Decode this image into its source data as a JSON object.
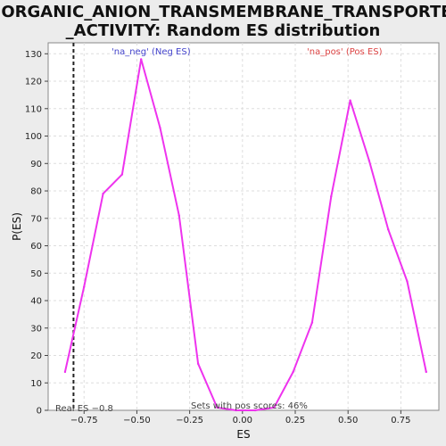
{
  "chart_data": {
    "type": "line",
    "title_lines": [
      "INORGANIC_ANION_TRANSMEMBRANE_TRANSPORTER",
      "_ACTIVITY: Random ES distribution"
    ],
    "xlabel": "ES",
    "ylabel": "P(ES)",
    "xlim": [
      -0.92,
      0.93
    ],
    "ylim": [
      0,
      134
    ],
    "x_ticks": [
      -0.75,
      -0.5,
      -0.25,
      0.0,
      0.25,
      0.5,
      0.75
    ],
    "x_tick_labels": [
      "−0.75",
      "−0.50",
      "−0.25",
      "0.00",
      "0.25",
      "0.50",
      "0.75"
    ],
    "y_ticks": [
      0,
      10,
      20,
      30,
      40,
      50,
      60,
      70,
      80,
      90,
      100,
      110,
      120,
      130
    ],
    "grid": true,
    "series": [
      {
        "color": "#ee33ee",
        "x": [
          -0.84,
          -0.75,
          -0.66,
          -0.57,
          -0.48,
          -0.39,
          -0.3,
          -0.21,
          -0.12,
          -0.03,
          0.06,
          0.15,
          0.24,
          0.33,
          0.42,
          0.51,
          0.6,
          0.69,
          0.78,
          0.87
        ],
        "y": [
          14,
          45,
          79,
          86,
          128,
          103,
          71,
          17,
          1,
          0,
          0,
          1,
          14,
          32,
          78,
          113,
          91,
          66,
          47,
          14
        ]
      }
    ],
    "real_es": -0.8,
    "real_es_label": "Real ES −0.8",
    "neg_label": "'na_neg' (Neg ES)",
    "pos_label": "'na_pos' (Pos ES)",
    "neg_color": "#4444cc",
    "pos_color": "#dd4444",
    "footer_text": "Sets with pos scores: 46%"
  }
}
